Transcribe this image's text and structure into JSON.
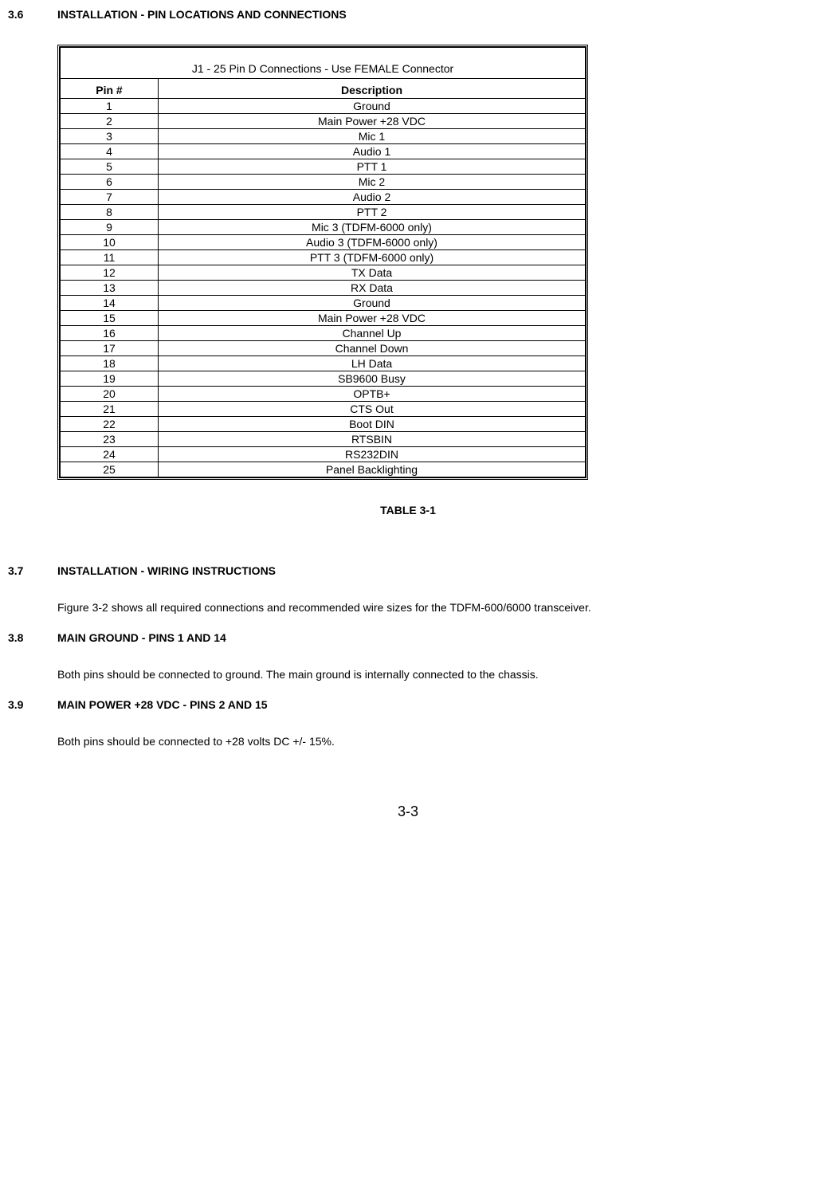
{
  "sections": {
    "s36": {
      "num": "3.6",
      "title": "INSTALLATION - PIN LOCATIONS AND CONNECTIONS"
    },
    "s37": {
      "num": "3.7",
      "title": "INSTALLATION - WIRING INSTRUCTIONS",
      "body": "Figure 3-2 shows all required connections and recommended wire sizes for the TDFM-600/6000 transceiver."
    },
    "s38": {
      "num": "3.8",
      "title": "MAIN GROUND - PINS 1 AND 14",
      "body": "Both pins should be connected to ground. The main ground is internally connected to the chassis."
    },
    "s39": {
      "num": "3.9",
      "title": "MAIN POWER +28 VDC - PINS 2 AND 15",
      "body": "Both pins should be connected to +28 volts DC +/- 15%."
    }
  },
  "table": {
    "title": "J1 - 25 Pin D Connections - Use FEMALE Connector",
    "col_pin": "Pin #",
    "col_desc": "Description",
    "rows": [
      {
        "pin": "1",
        "desc": "Ground"
      },
      {
        "pin": "2",
        "desc": "Main Power +28 VDC"
      },
      {
        "pin": "3",
        "desc": "Mic 1"
      },
      {
        "pin": "4",
        "desc": "Audio 1"
      },
      {
        "pin": "5",
        "desc": "PTT 1"
      },
      {
        "pin": "6",
        "desc": "Mic 2"
      },
      {
        "pin": "7",
        "desc": "Audio 2"
      },
      {
        "pin": "8",
        "desc": "PTT 2"
      },
      {
        "pin": "9",
        "desc": "Mic 3 (TDFM-6000 only)"
      },
      {
        "pin": "10",
        "desc": "Audio 3 (TDFM-6000 only)"
      },
      {
        "pin": "11",
        "desc": "PTT 3 (TDFM-6000 only)"
      },
      {
        "pin": "12",
        "desc": "TX Data"
      },
      {
        "pin": "13",
        "desc": "RX Data"
      },
      {
        "pin": "14",
        "desc": "Ground"
      },
      {
        "pin": "15",
        "desc": "Main Power +28 VDC"
      },
      {
        "pin": "16",
        "desc": "Channel Up"
      },
      {
        "pin": "17",
        "desc": "Channel Down"
      },
      {
        "pin": "18",
        "desc": "LH Data"
      },
      {
        "pin": "19",
        "desc": "SB9600 Busy"
      },
      {
        "pin": "20",
        "desc": "OPTB+"
      },
      {
        "pin": "21",
        "desc": "CTS Out"
      },
      {
        "pin": "22",
        "desc": "Boot DIN"
      },
      {
        "pin": "23",
        "desc": "RTSBIN"
      },
      {
        "pin": "24",
        "desc": "RS232DIN"
      },
      {
        "pin": "25",
        "desc": "Panel Backlighting"
      }
    ],
    "caption": "TABLE 3-1"
  },
  "page_number": "3-3"
}
